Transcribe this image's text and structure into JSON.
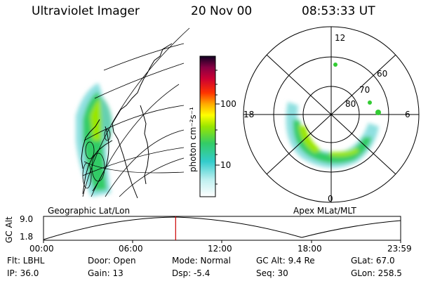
{
  "header": {
    "instrument": "Ultraviolet Imager",
    "date": "20 Nov 00",
    "time": "08:53:33 UT"
  },
  "panels": {
    "geo_label": "Geographic Lat/Lon",
    "apex_label": "Apex MLat/MLT"
  },
  "colorbar": {
    "unit_label": "photon cm⁻²s⁻¹",
    "ticks": [
      "100",
      "10"
    ]
  },
  "polar_plot": {
    "mlt_labels": [
      "12",
      "18",
      "6",
      "0"
    ],
    "mlat_labels": [
      "60",
      "70",
      "80"
    ]
  },
  "timeline": {
    "axis_label": "GC Alt",
    "y_ticks": [
      "9.0",
      "1.8"
    ],
    "x_ticks": [
      "00:00",
      "06:00",
      "12:00",
      "18:00",
      "23:59"
    ],
    "current_fraction": 0.37
  },
  "metadata": {
    "filter": "Flt: LBHL",
    "ip": "IP: 36.0",
    "door": "Door: Open",
    "gain": "Gain: 13",
    "mode": "Mode: Normal",
    "dsp": "Dsp:   -5.4",
    "gc_alt": "GC Alt: 9.4 Re",
    "seq": "Seq: 30",
    "glat": "GLat:  67.0",
    "glon": "GLon: 258.5"
  },
  "colors": {
    "aurora_low": "#8fe0e0",
    "aurora_mid": "#33cc66",
    "aurora_high": "#99e600",
    "marker": "#cc0000"
  }
}
